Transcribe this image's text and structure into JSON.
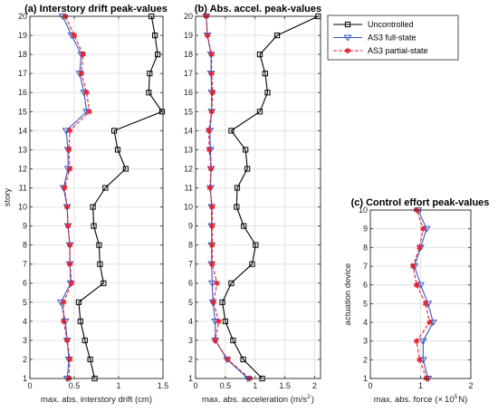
{
  "chart_data": [
    {
      "type": "line",
      "title": "(a) Interstory drift peak-values",
      "xlabel": "max. abs. interstory drift (cm)",
      "ylabel": "story",
      "xlim": [
        0,
        1.5
      ],
      "ylim": [
        1,
        20
      ],
      "xticks": [
        "0",
        "0.5",
        "1",
        "1.5"
      ],
      "yticks": [
        1,
        2,
        3,
        4,
        5,
        6,
        7,
        8,
        9,
        10,
        11,
        12,
        13,
        14,
        15,
        16,
        17,
        18,
        19,
        20
      ],
      "grid": true,
      "y": [
        1,
        2,
        3,
        4,
        5,
        6,
        7,
        8,
        9,
        10,
        11,
        12,
        13,
        14,
        15,
        16,
        17,
        18,
        19,
        20
      ],
      "series": [
        {
          "name": "Uncontrolled",
          "values": [
            0.73,
            0.68,
            0.62,
            0.57,
            0.55,
            0.83,
            0.79,
            0.78,
            0.72,
            0.71,
            0.85,
            1.08,
            0.99,
            0.95,
            1.49,
            1.34,
            1.35,
            1.44,
            1.41,
            1.37
          ],
          "color": "#000000"
        },
        {
          "name": "AS3 full-state",
          "values": [
            0.42,
            0.44,
            0.42,
            0.4,
            0.35,
            0.46,
            0.45,
            0.45,
            0.43,
            0.42,
            0.38,
            0.43,
            0.43,
            0.41,
            0.64,
            0.61,
            0.56,
            0.58,
            0.47,
            0.37
          ],
          "color": "#3a55c4"
        },
        {
          "name": "AS3 partial-state",
          "values": [
            0.44,
            0.45,
            0.42,
            0.38,
            0.38,
            0.47,
            0.45,
            0.45,
            0.43,
            0.42,
            0.39,
            0.45,
            0.44,
            0.45,
            0.67,
            0.64,
            0.58,
            0.6,
            0.5,
            0.4
          ],
          "color": "#e8202a"
        }
      ]
    },
    {
      "type": "line",
      "title": "(b) Abs. accel. peak-values",
      "xlabel": "max. abs. acceleration (m/s",
      "xlabel_sup": "2",
      "xlabel_end": ")",
      "xlim": [
        0,
        2.1
      ],
      "ylim": [
        1,
        20
      ],
      "xticks": [
        "0",
        "0.5",
        "1",
        "1.5",
        "2"
      ],
      "yticks": [
        1,
        2,
        3,
        4,
        5,
        6,
        7,
        8,
        9,
        10,
        11,
        12,
        13,
        14,
        15,
        16,
        17,
        18,
        19,
        20
      ],
      "grid": true,
      "y": [
        1,
        2,
        3,
        4,
        5,
        6,
        7,
        8,
        9,
        10,
        11,
        12,
        13,
        14,
        15,
        16,
        17,
        18,
        19,
        20
      ],
      "series": [
        {
          "name": "Uncontrolled",
          "values": [
            1.12,
            0.8,
            0.63,
            0.5,
            0.45,
            0.6,
            0.95,
            1.01,
            0.81,
            0.69,
            0.7,
            0.87,
            0.84,
            0.6,
            1.08,
            1.21,
            1.17,
            1.08,
            1.37,
            2.06
          ],
          "color": "#000000"
        },
        {
          "name": "AS3 full-state",
          "values": [
            0.88,
            0.53,
            0.33,
            0.33,
            0.29,
            0.28,
            0.27,
            0.27,
            0.27,
            0.27,
            0.25,
            0.26,
            0.25,
            0.24,
            0.27,
            0.27,
            0.26,
            0.26,
            0.2,
            0.18
          ],
          "color": "#3a55c4"
        },
        {
          "name": "AS3 partial-state",
          "values": [
            0.91,
            0.54,
            0.33,
            0.39,
            0.3,
            0.36,
            0.28,
            0.28,
            0.28,
            0.28,
            0.24,
            0.26,
            0.23,
            0.22,
            0.27,
            0.29,
            0.27,
            0.27,
            0.2,
            0.18
          ],
          "color": "#e8202a"
        }
      ]
    },
    {
      "type": "line",
      "title": "(c) Control effort peak-values",
      "xlabel": "max. abs. force (",
      "xlabel_times": "×",
      "xlabel_base": "10",
      "xlabel_sup": "5",
      "xlabel_end": "N)",
      "ylabel": "actuation device",
      "xlim": [
        0,
        2
      ],
      "ylim": [
        1,
        10
      ],
      "xticks": [
        "0",
        "1",
        "2"
      ],
      "yticks": [
        1,
        2,
        3,
        4,
        5,
        6,
        7,
        8,
        9,
        10
      ],
      "grid": true,
      "y": [
        1,
        2,
        3,
        4,
        5,
        6,
        7,
        8,
        9,
        10
      ],
      "series": [
        {
          "name": "AS3 full-state",
          "values": [
            1.15,
            1.05,
            1.05,
            1.25,
            1.15,
            1.0,
            0.88,
            1.0,
            1.12,
            0.95
          ],
          "color": "#3a55c4"
        },
        {
          "name": "AS3 partial-state",
          "values": [
            1.12,
            0.98,
            0.92,
            1.18,
            1.1,
            0.92,
            0.85,
            0.98,
            1.05,
            0.92
          ],
          "color": "#e8202a"
        }
      ]
    }
  ],
  "legend": {
    "placement": "top-right of panel (b)",
    "entries": [
      "Uncontrolled",
      "AS3 full-state",
      "AS3 partial-state"
    ]
  }
}
